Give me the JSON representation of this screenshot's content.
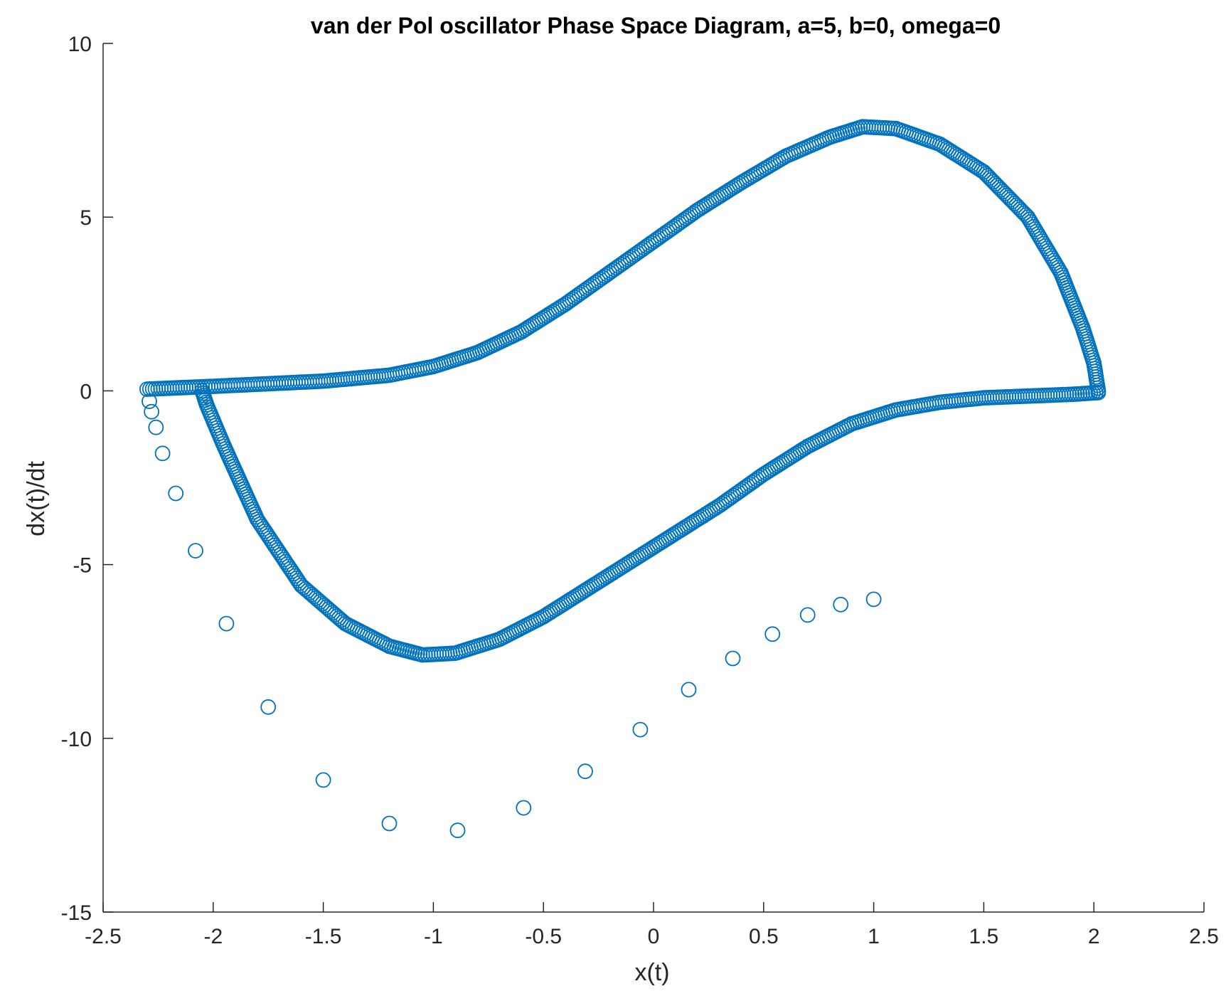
{
  "chart_data": {
    "type": "scatter",
    "title": "van der Pol oscillator Phase Space Diagram, a=5, b=0, omega=0",
    "xlabel": "x(t)",
    "ylabel": "dx(t)/dt",
    "xlim": [
      -2.5,
      2.5
    ],
    "ylim": [
      -15,
      10
    ],
    "xticks": [
      "-2.5",
      "-2",
      "-1.5",
      "-1",
      "-0.5",
      "0",
      "0.5",
      "1",
      "1.5",
      "2",
      "2.5"
    ],
    "xtick_values": [
      -2.5,
      -2,
      -1.5,
      -1,
      -0.5,
      0,
      0.5,
      1,
      1.5,
      2,
      2.5
    ],
    "yticks": [
      "10",
      "5",
      "0",
      "-5",
      "-10",
      "-15"
    ],
    "ytick_values": [
      10,
      5,
      0,
      -5,
      -10,
      -15
    ],
    "grid": false,
    "marker": "open-circle",
    "color": "#0072BD",
    "transient_points": [
      [
        1.0,
        -6.0
      ],
      [
        0.85,
        -6.15
      ],
      [
        0.7,
        -6.45
      ],
      [
        0.54,
        -7.0
      ],
      [
        0.36,
        -7.7
      ],
      [
        0.16,
        -8.6
      ],
      [
        -0.06,
        -9.75
      ],
      [
        -0.31,
        -10.95
      ],
      [
        -0.59,
        -12.0
      ],
      [
        -0.89,
        -12.65
      ],
      [
        -1.2,
        -12.45
      ],
      [
        -1.5,
        -11.2
      ],
      [
        -1.75,
        -9.1
      ],
      [
        -1.94,
        -6.7
      ],
      [
        -2.08,
        -4.6
      ],
      [
        -2.17,
        -2.95
      ],
      [
        -2.23,
        -1.8
      ],
      [
        -2.26,
        -1.05
      ],
      [
        -2.28,
        -0.6
      ],
      [
        -2.29,
        -0.3
      ]
    ],
    "limit_cycle_upper": [
      [
        -2.3,
        0.05
      ],
      [
        -2.0,
        0.13
      ],
      [
        -1.5,
        0.28
      ],
      [
        -1.2,
        0.45
      ],
      [
        -1.0,
        0.7
      ],
      [
        -0.8,
        1.1
      ],
      [
        -0.6,
        1.7
      ],
      [
        -0.4,
        2.5
      ],
      [
        -0.2,
        3.4
      ],
      [
        0.0,
        4.3
      ],
      [
        0.2,
        5.2
      ],
      [
        0.4,
        6.0
      ],
      [
        0.6,
        6.75
      ],
      [
        0.8,
        7.3
      ],
      [
        0.95,
        7.6
      ],
      [
        1.1,
        7.55
      ],
      [
        1.3,
        7.1
      ],
      [
        1.5,
        6.3
      ],
      [
        1.7,
        5.0
      ],
      [
        1.85,
        3.4
      ],
      [
        1.95,
        1.8
      ],
      [
        2.0,
        0.8
      ],
      [
        2.02,
        0.0
      ]
    ],
    "limit_cycle_lower": [
      [
        2.02,
        -0.05
      ],
      [
        1.9,
        -0.1
      ],
      [
        1.7,
        -0.15
      ],
      [
        1.5,
        -0.2
      ],
      [
        1.3,
        -0.33
      ],
      [
        1.1,
        -0.55
      ],
      [
        0.9,
        -0.95
      ],
      [
        0.7,
        -1.6
      ],
      [
        0.5,
        -2.4
      ],
      [
        0.3,
        -3.3
      ],
      [
        0.1,
        -4.1
      ],
      [
        -0.1,
        -4.9
      ],
      [
        -0.3,
        -5.7
      ],
      [
        -0.5,
        -6.5
      ],
      [
        -0.7,
        -7.15
      ],
      [
        -0.9,
        -7.55
      ],
      [
        -1.05,
        -7.6
      ],
      [
        -1.2,
        -7.35
      ],
      [
        -1.4,
        -6.7
      ],
      [
        -1.6,
        -5.6
      ],
      [
        -1.8,
        -3.7
      ],
      [
        -1.95,
        -1.6
      ],
      [
        -2.03,
        -0.4
      ],
      [
        -2.05,
        0.0
      ]
    ]
  }
}
